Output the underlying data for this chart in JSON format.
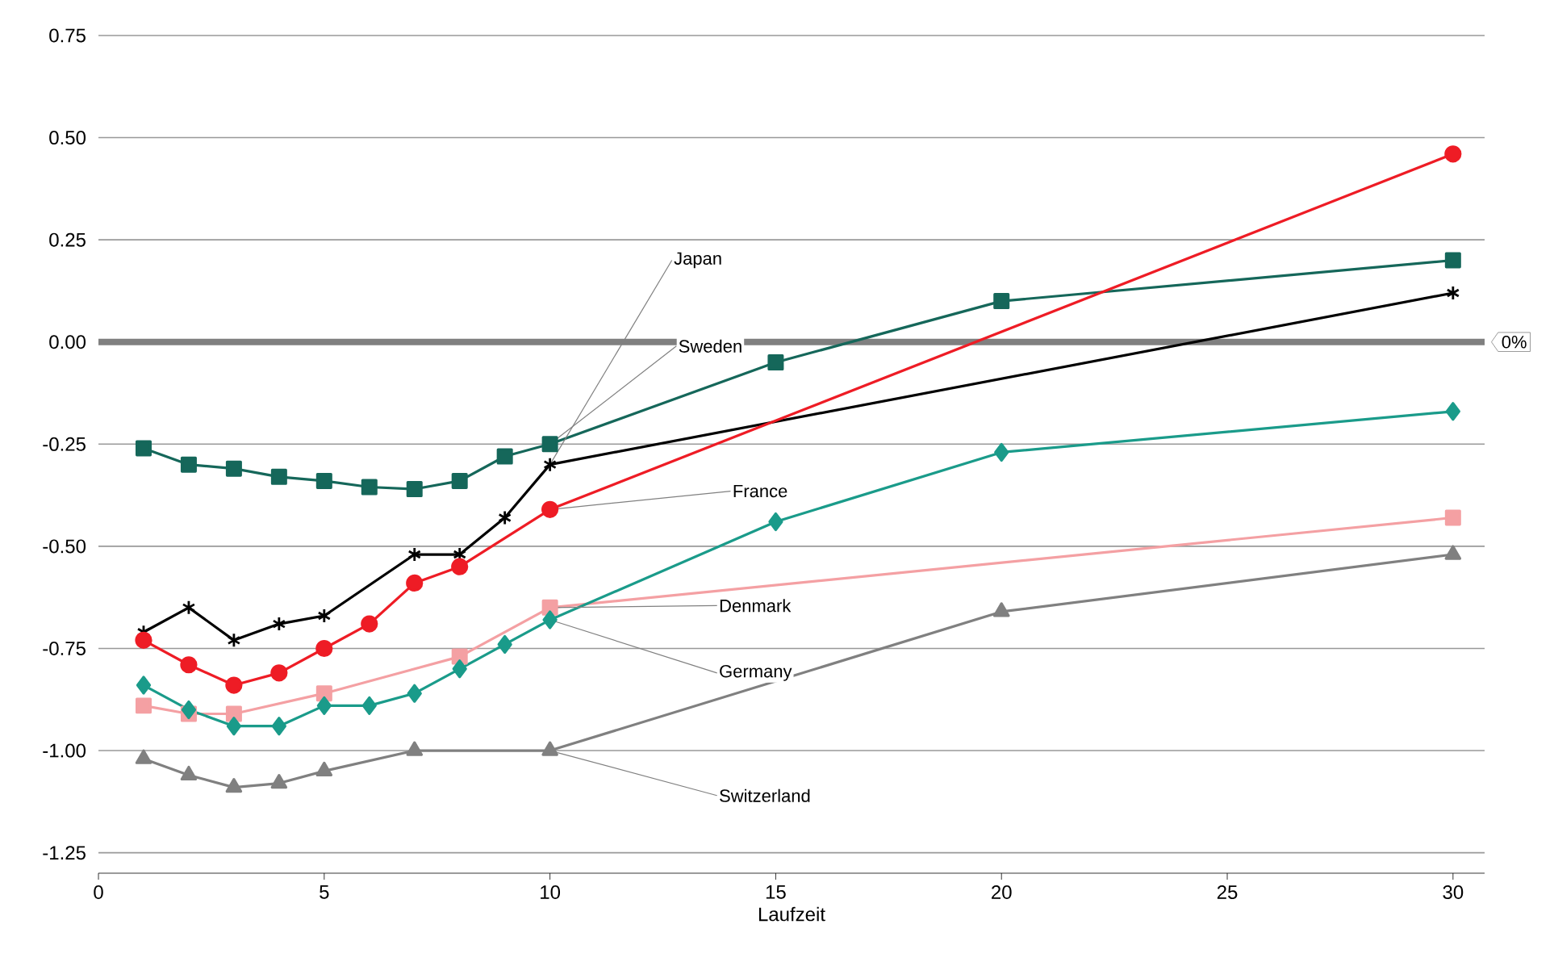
{
  "chart_data": {
    "type": "line",
    "xlabel": "Laufzeit",
    "xlim": [
      0,
      30.7
    ],
    "ylim": [
      -1.3,
      0.75
    ],
    "xticks": [
      0,
      5,
      10,
      15,
      20,
      25,
      30
    ],
    "yticks": [
      {
        "value": 0.75,
        "label": "0.75"
      },
      {
        "value": 0.5,
        "label": "0.50"
      },
      {
        "value": 0.25,
        "label": "0.25"
      },
      {
        "value": 0,
        "label": "0.00"
      },
      {
        "value": -0.25,
        "label": "-0.25"
      },
      {
        "value": -0.5,
        "label": "-0.50"
      },
      {
        "value": -0.75,
        "label": "-0.75"
      },
      {
        "value": -1,
        "label": "-1.00"
      },
      {
        "value": -1.25,
        "label": "-1.25"
      }
    ],
    "grid": "y",
    "line_style": "solid",
    "ref_lines": [
      {
        "axis": "y",
        "value": 0,
        "label": "0%",
        "color": "#808080"
      }
    ],
    "series": [
      {
        "name": "Japan",
        "color": "#000000",
        "marker": "cross",
        "x": [
          1,
          2,
          3,
          4,
          5,
          7,
          8,
          9,
          10,
          30
        ],
        "values": [
          -0.71,
          -0.65,
          -0.73,
          -0.69,
          -0.67,
          -0.52,
          -0.52,
          -0.43,
          -0.3,
          0.12
        ]
      },
      {
        "name": "Sweden",
        "color": "#15675a",
        "marker": "square",
        "x": [
          1,
          2,
          3,
          4,
          5,
          6,
          7,
          8,
          9,
          10,
          15,
          20,
          30
        ],
        "values": [
          -0.26,
          -0.3,
          -0.31,
          -0.33,
          -0.34,
          -0.355,
          -0.36,
          -0.34,
          -0.28,
          -0.25,
          -0.05,
          0.1,
          0.2
        ]
      },
      {
        "name": "France",
        "color": "#ee1c25",
        "marker": "circle",
        "x": [
          1,
          2,
          3,
          4,
          5,
          6,
          7,
          8,
          10,
          30
        ],
        "values": [
          -0.73,
          -0.79,
          -0.84,
          -0.81,
          -0.75,
          -0.69,
          -0.59,
          -0.55,
          -0.41,
          0.46
        ]
      },
      {
        "name": "Denmark",
        "color": "#f4a0a3",
        "marker": "square",
        "x": [
          1,
          2,
          3,
          5,
          8,
          10,
          30
        ],
        "values": [
          -0.89,
          -0.91,
          -0.91,
          -0.86,
          -0.77,
          -0.65,
          -0.43
        ]
      },
      {
        "name": "Germany",
        "color": "#1a9b8a",
        "marker": "diamond",
        "x": [
          1,
          2,
          3,
          4,
          5,
          6,
          7,
          8,
          9,
          10,
          15,
          20,
          30
        ],
        "values": [
          -0.84,
          -0.9,
          -0.94,
          -0.94,
          -0.89,
          -0.89,
          -0.86,
          -0.8,
          -0.74,
          -0.68,
          -0.44,
          -0.27,
          -0.17
        ]
      },
      {
        "name": "Switzerland",
        "color": "#808080",
        "marker": "triangle",
        "x": [
          1,
          2,
          3,
          4,
          5,
          7,
          10,
          20,
          30
        ],
        "values": [
          -1.02,
          -1.06,
          -1.09,
          -1.08,
          -1.05,
          -1.0,
          -1.0,
          -0.66,
          -0.52
        ]
      }
    ]
  }
}
